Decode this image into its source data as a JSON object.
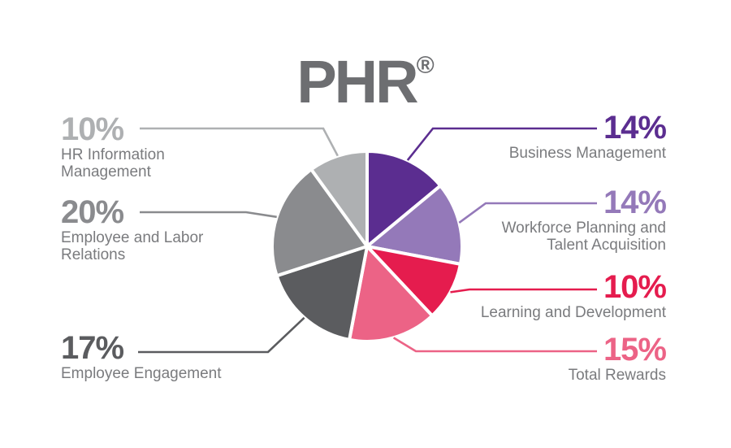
{
  "title": {
    "text": "PHR",
    "registered_mark": "®"
  },
  "colors": {
    "title": "#6D6E71",
    "category_label": "#7A7B7E",
    "background": "#FFFFFF",
    "slice_border": "#FFFFFF"
  },
  "chart_data": {
    "type": "pie",
    "title": "PHR®",
    "start_angle_deg": 0,
    "direction": "clockwise",
    "label_style": "external-callouts-with-leader-lines",
    "slices": [
      {
        "label": "Business Management",
        "value": 14,
        "percent_label": "14%",
        "color": "#5B2D90"
      },
      {
        "label": "Workforce Planning and Talent Acquisition",
        "value": 14,
        "percent_label": "14%",
        "color": "#9479B9"
      },
      {
        "label": "Learning and Development",
        "value": 10,
        "percent_label": "10%",
        "color": "#E51C4E"
      },
      {
        "label": "Total Rewards",
        "value": 15,
        "percent_label": "15%",
        "color": "#EC6386"
      },
      {
        "label": "Employee Engagement",
        "value": 17,
        "percent_label": "17%",
        "color": "#5B5C5F"
      },
      {
        "label": "Employee and Labor Relations",
        "value": 20,
        "percent_label": "20%",
        "color": "#8A8B8E"
      },
      {
        "label": "HR Information Management",
        "value": 10,
        "percent_label": "10%",
        "color": "#AEB0B2"
      }
    ]
  },
  "callouts": {
    "left": [
      {
        "percent": "10%",
        "line1": "HR Information",
        "line2": "Management",
        "color": "#AEB0B2"
      },
      {
        "percent": "20%",
        "line1": "Employee and Labor",
        "line2": "Relations",
        "color": "#8A8B8E"
      },
      {
        "percent": "17%",
        "line1": "Employee Engagement",
        "line2": "",
        "color": "#5B5C5F"
      }
    ],
    "right": [
      {
        "percent": "14%",
        "line1": "Business Management",
        "line2": "",
        "color": "#5B2D90"
      },
      {
        "percent": "14%",
        "line1": "Workforce Planning and",
        "line2": "Talent Acquisition",
        "color": "#9479B9"
      },
      {
        "percent": "10%",
        "line1": "Learning and Development",
        "line2": "",
        "color": "#E51C4E"
      },
      {
        "percent": "15%",
        "line1": "Total Rewards",
        "line2": "",
        "color": "#EC6386"
      }
    ]
  }
}
